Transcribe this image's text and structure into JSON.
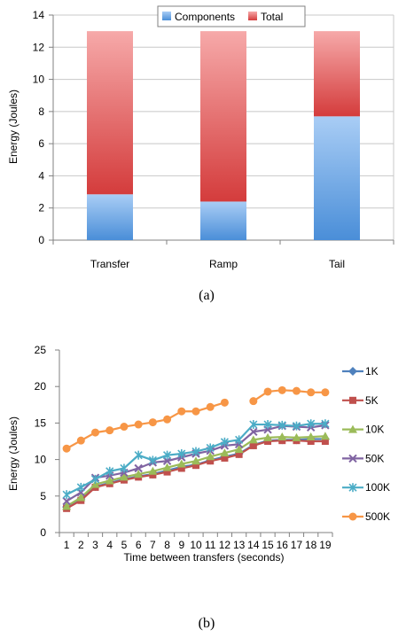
{
  "figure": {
    "caption_a": "(a)",
    "caption_b": "(b)"
  },
  "chart_data": [
    {
      "type": "bar",
      "stacked": true,
      "title": "",
      "xlabel": "",
      "ylabel": "Energy (Joules)",
      "ylim": [
        0,
        14
      ],
      "yticks": [
        0,
        2,
        4,
        6,
        8,
        10,
        12,
        14
      ],
      "grid": true,
      "legend_position": "top-right",
      "categories": [
        "Transfer",
        "Ramp",
        "Tail"
      ],
      "series": [
        {
          "name": "Components",
          "values": [
            2.85,
            2.4,
            7.7
          ],
          "color": "#6aa2e0"
        },
        {
          "name": "Total",
          "values": [
            10.15,
            10.6,
            5.3
          ],
          "color": "#e25a5a"
        }
      ],
      "totals": [
        13,
        13,
        13
      ]
    },
    {
      "type": "line",
      "title": "",
      "xlabel": "Time between transfers (seconds)",
      "ylabel": "Energy (Joules)",
      "ylim": [
        0,
        25
      ],
      "yticks": [
        0,
        5,
        10,
        15,
        20,
        25
      ],
      "grid": false,
      "legend_position": "right",
      "x": [
        1,
        2,
        3,
        4,
        5,
        6,
        7,
        8,
        9,
        10,
        11,
        12,
        13,
        14,
        15,
        16,
        17,
        18,
        19
      ],
      "series": [
        {
          "name": "1K",
          "color": "#4f81bd",
          "marker": "diamond",
          "values": [
            3.5,
            4.6,
            6.3,
            6.8,
            7.3,
            7.7,
            8.0,
            8.5,
            9.0,
            9.3,
            9.9,
            10.4,
            10.8,
            12.0,
            12.6,
            12.7,
            12.7,
            12.8,
            12.8
          ]
        },
        {
          "name": "5K",
          "color": "#c0504d",
          "marker": "square",
          "values": [
            3.3,
            4.4,
            6.2,
            6.7,
            7.2,
            7.6,
            7.9,
            8.3,
            8.8,
            9.2,
            9.8,
            10.2,
            10.7,
            11.9,
            12.5,
            12.6,
            12.6,
            12.5,
            12.5
          ]
        },
        {
          "name": "10K",
          "color": "#9bbb59",
          "marker": "triangle",
          "values": [
            3.6,
            4.8,
            6.6,
            7.1,
            7.6,
            8.0,
            8.4,
            8.9,
            9.4,
            9.8,
            10.4,
            10.9,
            11.4,
            12.7,
            13.0,
            13.1,
            13.0,
            13.1,
            13.2
          ]
        },
        {
          "name": "50K",
          "color": "#8064a2",
          "marker": "x",
          "values": [
            4.3,
            5.5,
            7.5,
            7.8,
            8.2,
            8.8,
            9.6,
            9.8,
            10.3,
            10.8,
            11.2,
            11.9,
            12.1,
            13.8,
            14.1,
            14.6,
            14.5,
            14.4,
            14.7
          ]
        },
        {
          "name": "100K",
          "color": "#4bacc6",
          "marker": "star",
          "values": [
            5.2,
            6.2,
            7.3,
            8.4,
            8.8,
            10.6,
            9.9,
            10.6,
            10.8,
            11.1,
            11.6,
            12.4,
            12.7,
            14.8,
            14.8,
            14.7,
            14.6,
            14.9,
            14.9
          ]
        },
        {
          "name": "500K",
          "color": "#f79646",
          "marker": "circle",
          "values": [
            11.5,
            12.6,
            13.7,
            14.0,
            14.5,
            14.8,
            15.1,
            15.5,
            16.6,
            16.6,
            17.2,
            17.8,
            null,
            18.0,
            19.3,
            19.5,
            19.4,
            19.2,
            19.2
          ]
        }
      ]
    }
  ]
}
